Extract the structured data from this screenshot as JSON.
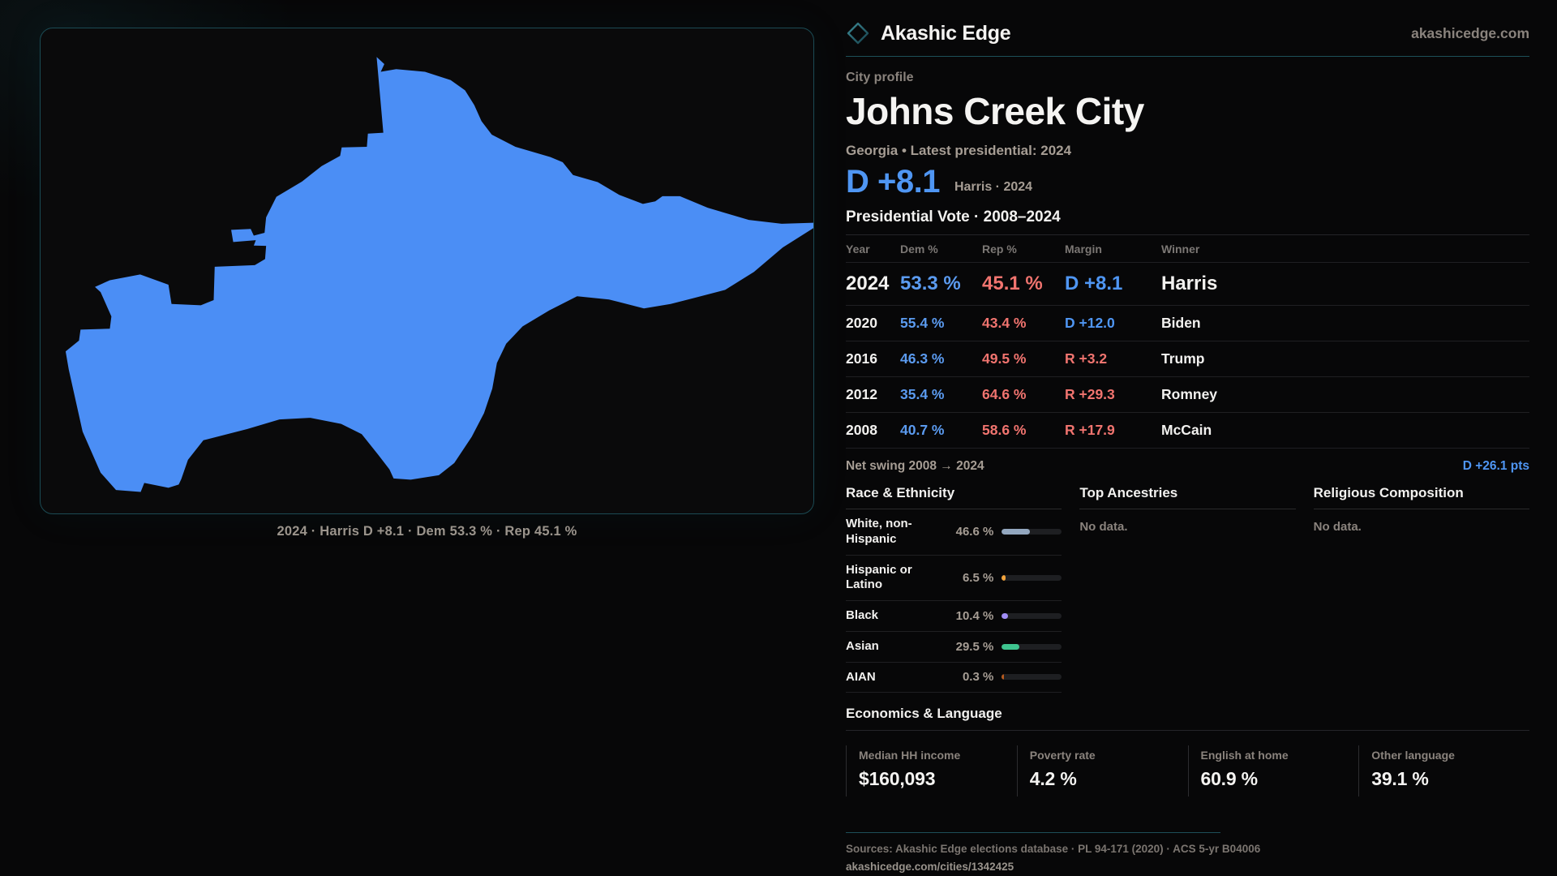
{
  "brand": {
    "name": "Akashic Edge",
    "domain": "akashicedge.com"
  },
  "profile": {
    "kicker": "City profile",
    "title": "Johns Creek City",
    "subtitle": "Georgia • Latest presidential: 2024",
    "headline_margin": "D +8.1",
    "headline_note": "Harris · 2024"
  },
  "map": {
    "caption": "2024 · Harris D +8.1 · Dem 53.3 % · Rep 45.1 %",
    "fill_color": "#4b8ef5"
  },
  "election_table": {
    "title": "Presidential Vote · 2008–2024",
    "columns": {
      "year": "Year",
      "dem": "Dem %",
      "rep": "Rep %",
      "margin": "Margin",
      "winner": "Winner"
    },
    "rows": [
      {
        "year": "2024",
        "dem": "53.3 %",
        "rep": "45.1 %",
        "margin": "D +8.1",
        "winner": "Harris"
      },
      {
        "year": "2020",
        "dem": "55.4 %",
        "rep": "43.4 %",
        "margin": "D +12.0",
        "winner": "Biden"
      },
      {
        "year": "2016",
        "dem": "46.3 %",
        "rep": "49.5 %",
        "margin": "R +3.2",
        "winner": "Trump"
      },
      {
        "year": "2012",
        "dem": "35.4 %",
        "rep": "64.6 %",
        "margin": "R +29.3",
        "winner": "Romney"
      },
      {
        "year": "2008",
        "dem": "40.7 %",
        "rep": "58.6 %",
        "margin": "R +17.9",
        "winner": "McCain"
      }
    ],
    "net_swing_label": "Net swing 2008 → 2024",
    "net_swing_value": "D +26.1 pts"
  },
  "demographics": {
    "race_title": "Race & Ethnicity",
    "race_rows": [
      {
        "label": "White, non-Hispanic",
        "value": "46.6 %",
        "pct": 46.6,
        "color": "#93a7bf"
      },
      {
        "label": "Hispanic or Latino",
        "value": "6.5 %",
        "pct": 6.5,
        "color": "#f2a33c"
      },
      {
        "label": "Black",
        "value": "10.4 %",
        "pct": 10.4,
        "color": "#a18df5"
      },
      {
        "label": "Asian",
        "value": "29.5 %",
        "pct": 29.5,
        "color": "#3ec48f"
      },
      {
        "label": "AIAN",
        "value": "0.3 %",
        "pct": 0.3,
        "color": "#b65a1f"
      }
    ],
    "ancestries_title": "Top Ancestries",
    "ancestries_empty": "No data.",
    "religion_title": "Religious Composition",
    "religion_empty": "No data."
  },
  "economics": {
    "title": "Economics & Language",
    "stats": [
      {
        "label": "Median HH income",
        "value": "$160,093"
      },
      {
        "label": "Poverty rate",
        "value": "4.2 %"
      },
      {
        "label": "English at home",
        "value": "60.9 %"
      },
      {
        "label": "Other language",
        "value": "39.1 %"
      }
    ]
  },
  "footer": {
    "sources": "Sources: Akashic Edge elections database · PL 94-171 (2020) · ACS 5-yr B04006",
    "permalink": "akashicedge.com/cities/1342425"
  },
  "colors": {
    "accent_dem": "#4f96f3",
    "accent_rep": "#f1746f",
    "teal_border": "#1d4f58",
    "map_fill": "#4b8ef5"
  }
}
